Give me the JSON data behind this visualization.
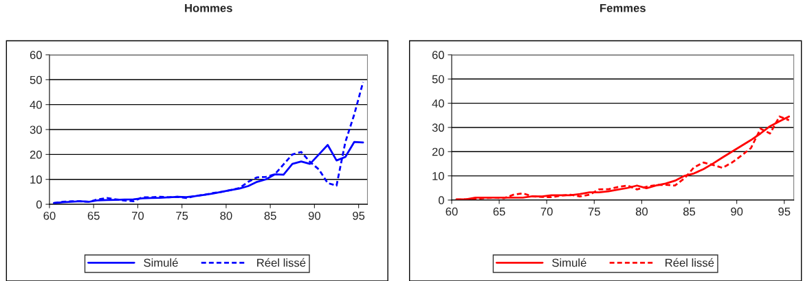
{
  "chart_data": [
    {
      "type": "line",
      "title": "Hommes",
      "x": [
        60.5,
        61.5,
        62.5,
        63.5,
        64.5,
        65.5,
        66.5,
        67.5,
        68.5,
        69.5,
        70.5,
        71.5,
        72.5,
        73.5,
        74.5,
        75.5,
        76.5,
        77.5,
        78.5,
        79.5,
        80.5,
        81.5,
        82.5,
        83.5,
        84.5,
        85.5,
        86.5,
        87.5,
        88.5,
        89.5,
        90.5,
        91.5,
        92.5,
        93.5,
        94.5,
        95.5
      ],
      "xlim": [
        60,
        96
      ],
      "xticks": [
        60,
        65,
        70,
        75,
        80,
        85,
        90,
        95
      ],
      "ylim": [
        0,
        60
      ],
      "yticks": [
        0,
        10,
        20,
        30,
        40,
        50,
        60
      ],
      "grid": "y",
      "legend": "bottom",
      "series": [
        {
          "name": "Simulé",
          "color": "#0000ff",
          "line_style": "solid",
          "values": [
            0.5,
            0.8,
            1,
            1.2,
            1,
            1.6,
            1.7,
            1.8,
            1.9,
            2,
            2.4,
            2.5,
            2.6,
            2.8,
            3,
            2.9,
            3.3,
            3.8,
            4.3,
            5,
            5.7,
            6.3,
            7.3,
            9,
            10,
            12,
            11.9,
            16.2,
            17.2,
            16.2,
            20,
            23.8,
            17.6,
            19,
            25,
            24.8
          ]
        },
        {
          "name": "Réel lissé",
          "color": "#0000ff",
          "line_style": "dashed",
          "values": [
            0.5,
            1,
            1.2,
            1.2,
            1,
            2,
            2.5,
            2,
            1.5,
            1.2,
            2.8,
            2.8,
            3,
            2.8,
            3,
            2.5,
            3.3,
            3.8,
            4.5,
            5,
            5.7,
            6.5,
            9,
            10.8,
            11,
            12,
            16,
            20,
            21,
            17,
            14,
            8.5,
            7.5,
            25,
            36,
            49
          ]
        }
      ]
    },
    {
      "type": "line",
      "title": "Femmes",
      "x": [
        60.5,
        61.5,
        62.5,
        63.5,
        64.5,
        65.5,
        66.5,
        67.5,
        68.5,
        69.5,
        70.5,
        71.5,
        72.5,
        73.5,
        74.5,
        75.5,
        76.5,
        77.5,
        78.5,
        79.5,
        80.5,
        81.5,
        82.5,
        83.5,
        84.5,
        85.5,
        86.5,
        87.5,
        88.5,
        89.5,
        90.5,
        91.5,
        92.5,
        93.5,
        94.5,
        95.5
      ],
      "xlim": [
        60,
        96
      ],
      "xticks": [
        60,
        65,
        70,
        75,
        80,
        85,
        90,
        95
      ],
      "ylim": [
        0,
        60
      ],
      "yticks": [
        0,
        10,
        20,
        30,
        40,
        50,
        60
      ],
      "grid": "y",
      "legend": "bottom",
      "series": [
        {
          "name": "Simulé",
          "color": "#ff0000",
          "line_style": "solid",
          "values": [
            0.3,
            0.3,
            1,
            1,
            1,
            1,
            1,
            1,
            1.6,
            1.5,
            2,
            2,
            2,
            2.5,
            3.2,
            3.2,
            3.6,
            4.3,
            5,
            6,
            4.9,
            6,
            6.8,
            8,
            10,
            11,
            12.8,
            15.1,
            17.6,
            20,
            22.4,
            24.8,
            27.5,
            30.5,
            32.5,
            34.5
          ]
        },
        {
          "name": "Réel lissé",
          "color": "#ff0000",
          "line_style": "dashed",
          "values": [
            0.2,
            0.3,
            0.5,
            0.8,
            1,
            0.8,
            2.2,
            2.8,
            1.5,
            1.3,
            1.2,
            1.8,
            2.2,
            1.5,
            2.2,
            4.4,
            4.5,
            5.4,
            6,
            4.4,
            5.5,
            6.2,
            6.3,
            6,
            9,
            13.5,
            15.5,
            14.5,
            13.3,
            15.5,
            18.4,
            21.5,
            29.5,
            27.5,
            34.5,
            33
          ]
        }
      ]
    }
  ]
}
